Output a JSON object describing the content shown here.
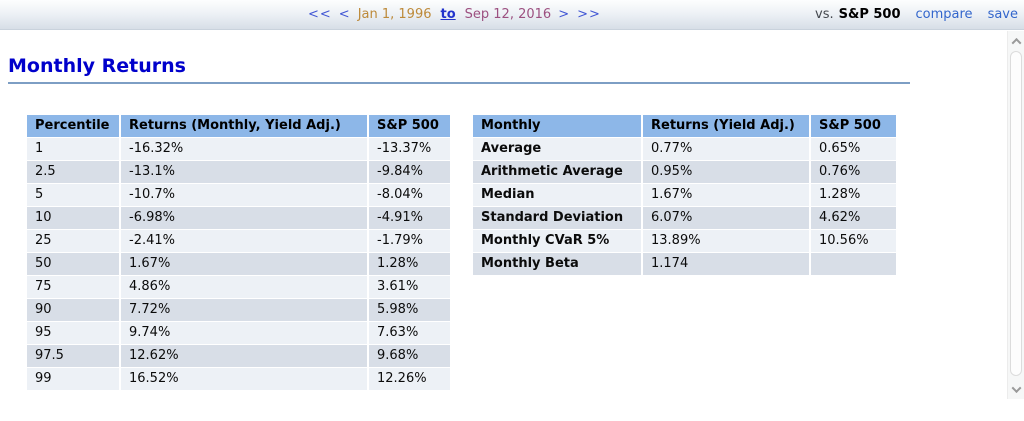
{
  "toolbar": {
    "nav": {
      "first_label": "<<",
      "prev_label": "<",
      "start_date": "Jan 1, 1996",
      "to_label": "to",
      "end_date": "Sep 12, 2016",
      "next_label": ">",
      "last_label": ">>"
    },
    "vs_label": "vs.",
    "benchmark": "S&P 500",
    "compare_label": "compare",
    "save_label": "save"
  },
  "page": {
    "title": "Monthly Returns"
  },
  "percentile_table": {
    "headers": [
      "Percentile",
      "Returns (Monthly, Yield Adj.)",
      "S&P 500"
    ],
    "rows": [
      [
        "1",
        "-16.32%",
        "-13.37%"
      ],
      [
        "2.5",
        "-13.1%",
        "-9.84%"
      ],
      [
        "5",
        "-10.7%",
        "-8.04%"
      ],
      [
        "10",
        "-6.98%",
        "-4.91%"
      ],
      [
        "25",
        "-2.41%",
        "-1.79%"
      ],
      [
        "50",
        "1.67%",
        "1.28%"
      ],
      [
        "75",
        "4.86%",
        "3.61%"
      ],
      [
        "90",
        "7.72%",
        "5.98%"
      ],
      [
        "95",
        "9.74%",
        "7.63%"
      ],
      [
        "97.5",
        "12.62%",
        "9.68%"
      ],
      [
        "99",
        "16.52%",
        "12.26%"
      ]
    ]
  },
  "stats_table": {
    "headers": [
      "Monthly",
      "Returns (Yield Adj.)",
      "S&P 500"
    ],
    "rows": [
      [
        "Average",
        "0.77%",
        "0.65%"
      ],
      [
        "Arithmetic Average",
        "0.95%",
        "0.76%"
      ],
      [
        "Median",
        "1.67%",
        "1.28%"
      ],
      [
        "Standard Deviation",
        "6.07%",
        "4.62%"
      ],
      [
        "Monthly CVaR 5%",
        "13.89%",
        "10.56%"
      ],
      [
        "Monthly Beta",
        "1.174",
        ""
      ]
    ]
  },
  "colors": {
    "table_header_bg": "#8db7e8",
    "row_light": "#edf1f6",
    "row_dark": "#d8dee7",
    "title_blue": "#0000cb",
    "link_blue": "#3366cc",
    "start_date_color": "#bd8a3a",
    "end_date_color": "#9c5080",
    "rule_blue": "#7d9ec4"
  }
}
